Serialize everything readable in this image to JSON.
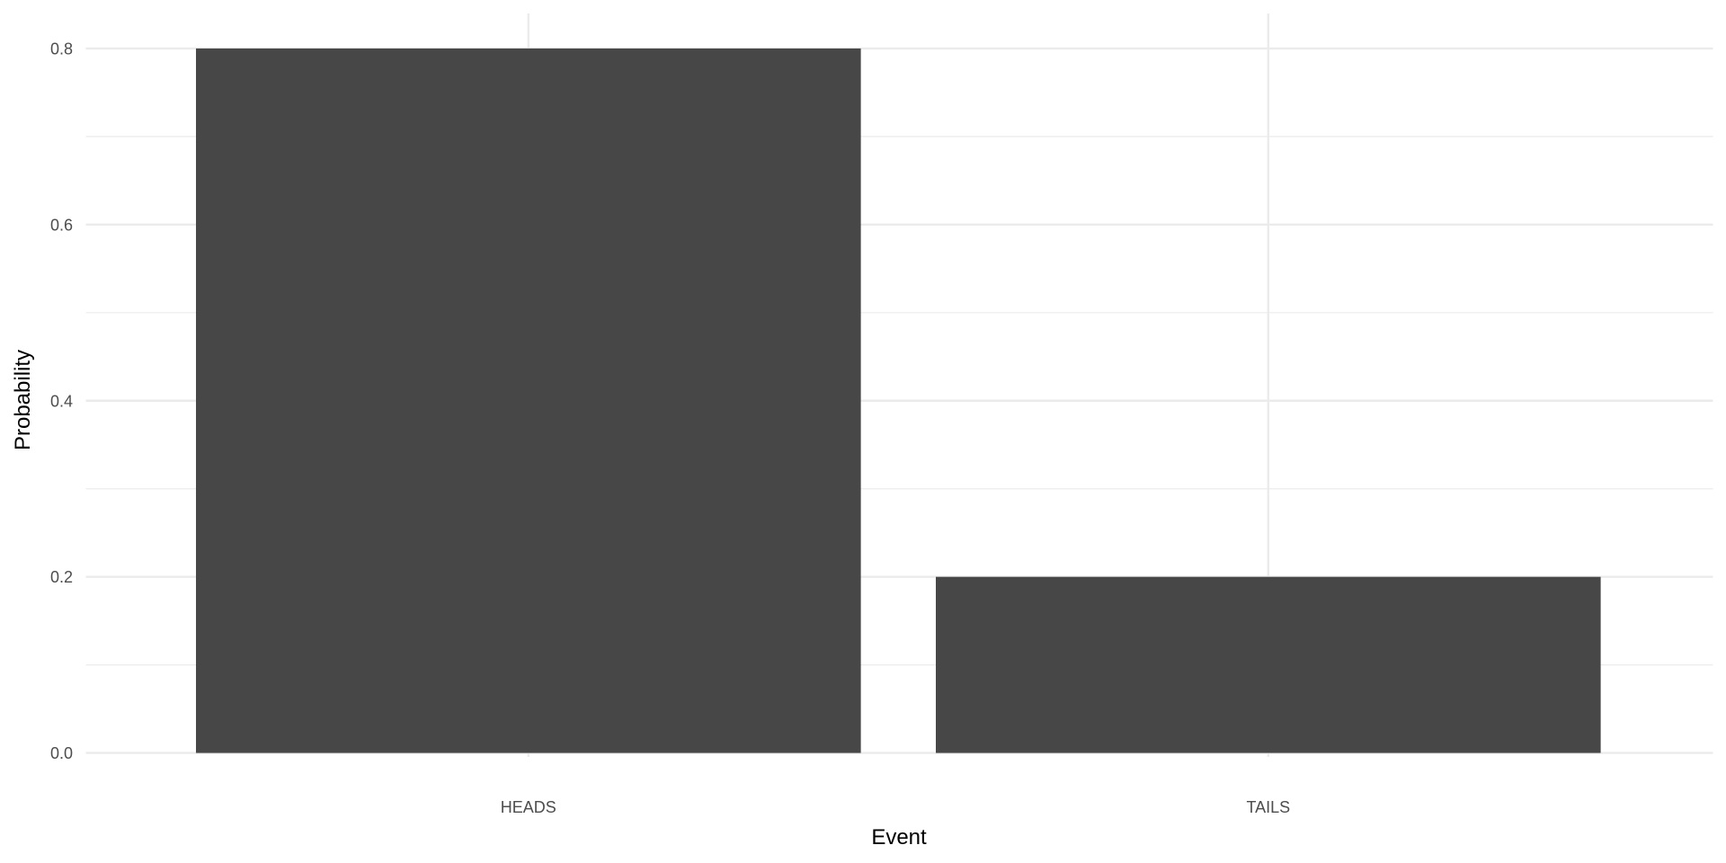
{
  "chart_data": {
    "type": "bar",
    "categories": [
      "HEADS",
      "TAILS"
    ],
    "values": [
      0.8,
      0.2
    ],
    "title": "",
    "xlabel": "Event",
    "ylabel": "Probability",
    "ylim": [
      0,
      0.8
    ],
    "yticks": [
      "0.0",
      "0.2",
      "0.4",
      "0.6",
      "0.8"
    ],
    "grid": true,
    "bar_color": "#474747",
    "grid_color": "#ebebeb"
  }
}
